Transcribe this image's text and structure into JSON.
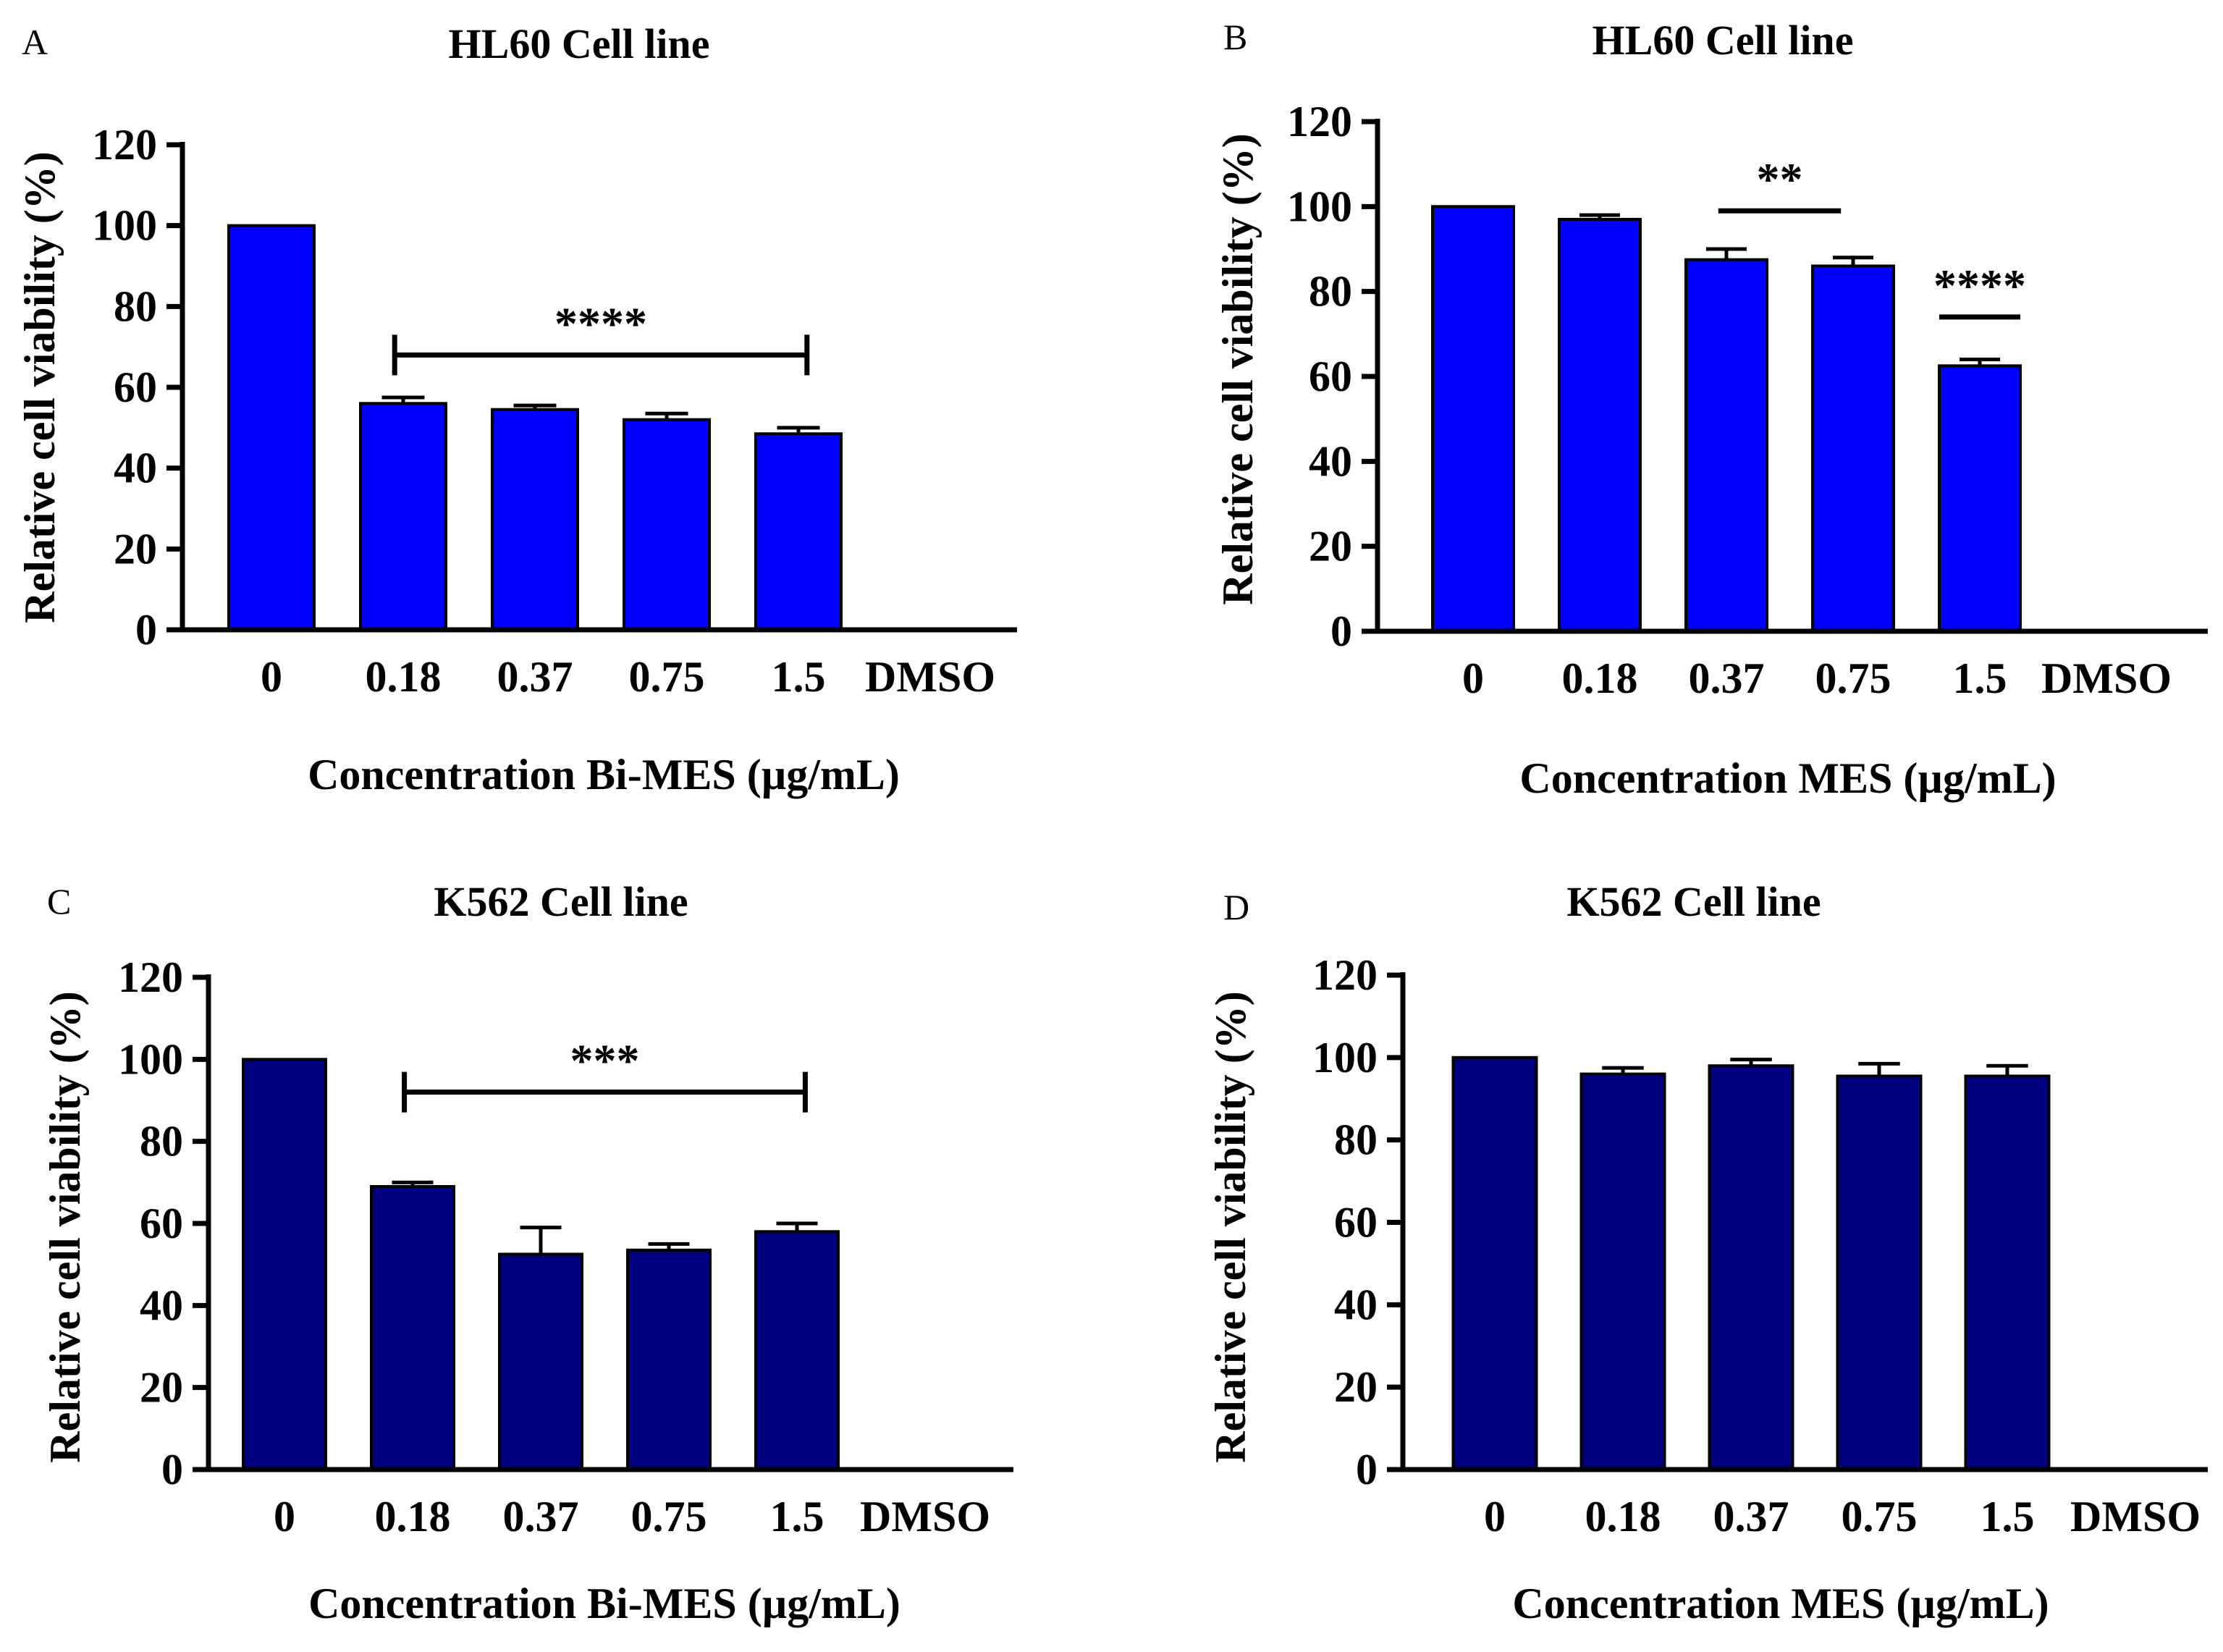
{
  "chart_data": [
    {
      "panel": "A",
      "type": "bar",
      "title": "HL60 Cell line",
      "xlabel": "Concentration Bi-MES (µg/mL)",
      "ylabel": "Relative cell viability (%)",
      "ylim": [
        0,
        120
      ],
      "yticks": [
        0,
        20,
        40,
        60,
        80,
        100,
        120
      ],
      "categories": [
        "0",
        "0.18",
        "0.37",
        "0.75",
        "1.5",
        "DMSO"
      ],
      "values": [
        100,
        56,
        54.5,
        52,
        48.5,
        0
      ],
      "errors": [
        0,
        1.5,
        1,
        1.5,
        1.5,
        0
      ],
      "bar_color": "#0000ff",
      "significance": [
        {
          "label": "****",
          "from": 1,
          "to": 4,
          "y": 68,
          "end_ticks": true
        }
      ]
    },
    {
      "panel": "B",
      "type": "bar",
      "title": "HL60 Cell line",
      "xlabel": "Concentration MES (µg/mL)",
      "ylabel": "Relative cell viability (%)",
      "ylim": [
        0,
        120
      ],
      "yticks": [
        0,
        20,
        40,
        60,
        80,
        100,
        120
      ],
      "categories": [
        "0",
        "0.18",
        "0.37",
        "0.75",
        "1.5",
        "DMSO"
      ],
      "values": [
        100,
        97,
        87.5,
        86,
        62.5,
        0
      ],
      "errors": [
        0,
        1,
        2.5,
        2,
        1.5,
        0
      ],
      "bar_color": "#0000ff",
      "significance": [
        {
          "label": "**",
          "from": 2,
          "to": 3,
          "y": 99,
          "end_ticks": false
        },
        {
          "label": "****",
          "from": 4,
          "to": 4,
          "y": 74,
          "end_ticks": false
        }
      ]
    },
    {
      "panel": "C",
      "type": "bar",
      "title": "K562 Cell line",
      "xlabel": "Concentration Bi-MES (µg/mL)",
      "ylabel": "Relative cell viability (%)",
      "ylim": [
        0,
        120
      ],
      "yticks": [
        0,
        20,
        40,
        60,
        80,
        100,
        120
      ],
      "categories": [
        "0",
        "0.18",
        "0.37",
        "0.75",
        "1.5",
        "DMSO"
      ],
      "values": [
        100,
        69,
        52.5,
        53.5,
        58,
        0
      ],
      "errors": [
        0,
        1,
        6.5,
        1.5,
        2,
        0
      ],
      "bar_color": "#000080",
      "significance": [
        {
          "label": "***",
          "from": 1,
          "to": 4,
          "y": 92,
          "end_ticks": true
        }
      ]
    },
    {
      "panel": "D",
      "type": "bar",
      "title": "K562 Cell line",
      "xlabel": "Concentration MES (µg/mL)",
      "ylabel": "Relative cell viability (%)",
      "ylim": [
        0,
        120
      ],
      "yticks": [
        0,
        20,
        40,
        60,
        80,
        100,
        120
      ],
      "categories": [
        "0",
        "0.18",
        "0.37",
        "0.75",
        "1.5",
        "DMSO"
      ],
      "values": [
        100,
        96,
        98,
        95.5,
        95.5,
        0
      ],
      "errors": [
        0,
        1.5,
        1.5,
        3,
        2.5,
        0
      ],
      "bar_color": "#000080",
      "significance": []
    }
  ]
}
